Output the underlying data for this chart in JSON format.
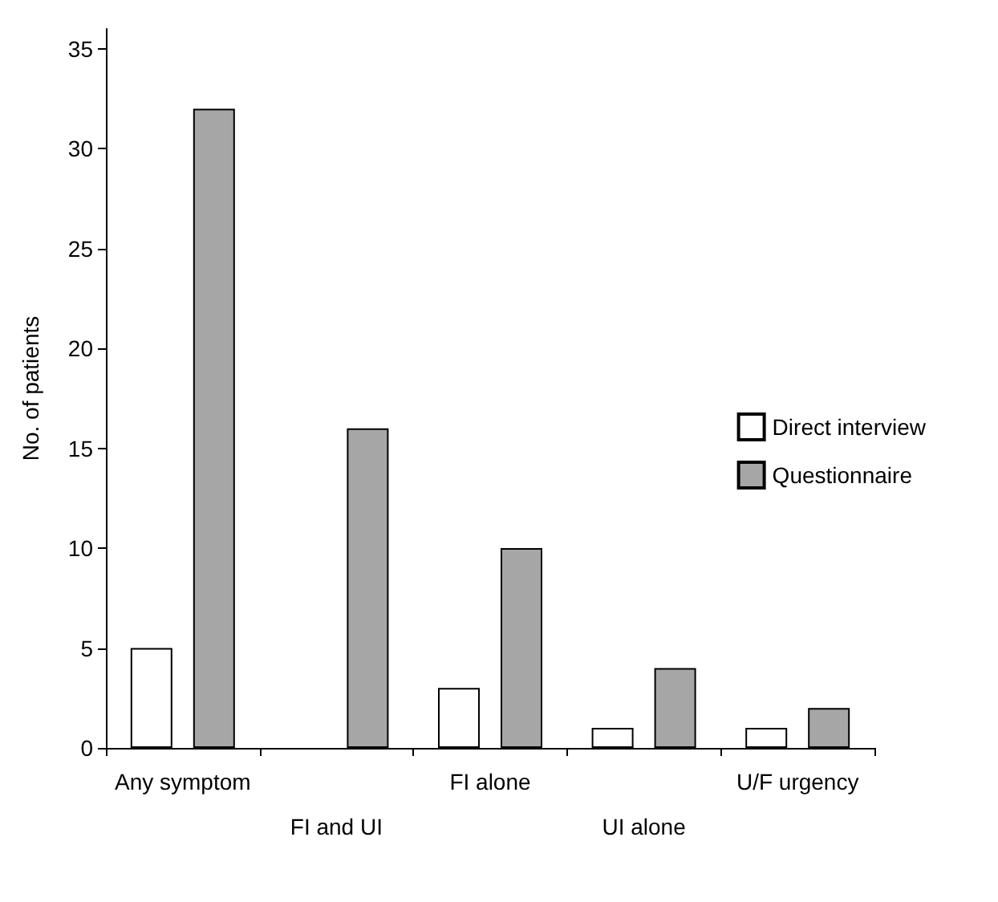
{
  "chart_data": {
    "type": "bar",
    "ylabel": "No. of patients",
    "categories": [
      "Any symptom",
      "FI and UI",
      "FI alone",
      "UI alone",
      "U/F urgency"
    ],
    "series": [
      {
        "name": "Direct interview",
        "color": "#ffffff",
        "values": [
          5,
          0,
          3,
          1,
          1
        ]
      },
      {
        "name": "Questionnaire",
        "color": "#a6a6a6",
        "values": [
          32,
          16,
          10,
          4,
          2
        ]
      }
    ],
    "ylim": [
      0,
      36
    ],
    "yticks": [
      0,
      5,
      10,
      15,
      20,
      25,
      30,
      35
    ],
    "grid": false,
    "legend": "right"
  }
}
